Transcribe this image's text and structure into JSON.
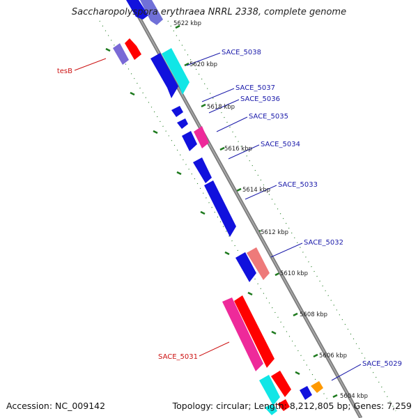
{
  "title": "Saccharopolyspora erythraea NRRL 2338, complete genome",
  "footer": {
    "accession": "Accession: NC_009142",
    "summary": "Topology: circular; Length: 8,212,805 bp; Genes: 7,259"
  },
  "colors": {
    "backbone": "#8a8a8a",
    "tick_dash": "#1e7a1e",
    "label_blue": "#1a1aaa",
    "label_red": "#cc1111"
  },
  "tick_labels": [
    "5622 kbp",
    "5620 kbp",
    "5618 kbp",
    "5616 kbp",
    "5614 kbp",
    "5612 kbp",
    "5610 kbp",
    "5608 kbp",
    "5606 kbp",
    "5604 kbp"
  ],
  "gene_labels": [
    {
      "text": "SACE_5038",
      "color": "#1a1aaa"
    },
    {
      "text": "SACE_5037",
      "color": "#1a1aaa"
    },
    {
      "text": "SACE_5036",
      "color": "#1a1aaa"
    },
    {
      "text": "SACE_5035",
      "color": "#1a1aaa"
    },
    {
      "text": "SACE_5034",
      "color": "#1a1aaa"
    },
    {
      "text": "SACE_5033",
      "color": "#1a1aaa"
    },
    {
      "text": "SACE_5032",
      "color": "#1a1aaa"
    },
    {
      "text": "SACE_5029",
      "color": "#1a1aaa"
    },
    {
      "text": "tesB",
      "color": "#cc1111"
    },
    {
      "text": "SACE_5031",
      "color": "#cc1111"
    }
  ]
}
